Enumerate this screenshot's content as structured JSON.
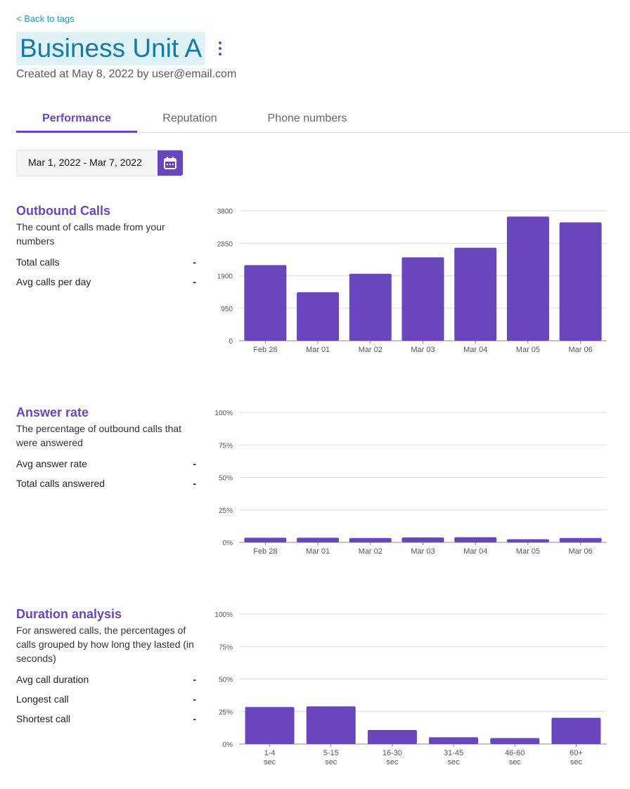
{
  "nav": {
    "back_label": "< Back to tags"
  },
  "header": {
    "title": "Business Unit A",
    "subtitle": "Created at May 8, 2022 by user@email.com"
  },
  "tabs": [
    {
      "label": "Performance",
      "active": true
    },
    {
      "label": "Reputation",
      "active": false
    },
    {
      "label": "Phone numbers",
      "active": false
    }
  ],
  "date_range": {
    "value": "Mar 1, 2022 - Mar 7, 2022"
  },
  "colors": {
    "accent": "#6a46bd",
    "title_bg": "#dff2f8",
    "title_text": "#137ba6",
    "link": "#1a9bc4"
  },
  "sections": {
    "outbound": {
      "title": "Outbound Calls",
      "description": "The count of calls made from your numbers",
      "stats": [
        {
          "label": "Total calls",
          "value": "-"
        },
        {
          "label": "Avg calls per day",
          "value": "-"
        }
      ]
    },
    "answer": {
      "title": "Answer rate",
      "description": "The percentage of outbound calls that were answered",
      "stats": [
        {
          "label": "Avg answer rate",
          "value": "-"
        },
        {
          "label": "Total calls answered",
          "value": "-"
        }
      ]
    },
    "duration": {
      "title": "Duration analysis",
      "description": "For answered calls, the percentages of calls grouped by how long they lasted (in seconds)",
      "stats": [
        {
          "label": "Avg call duration",
          "value": "-"
        },
        {
          "label": "Longest call",
          "value": "-"
        },
        {
          "label": "Shortest call",
          "value": "-"
        }
      ]
    }
  },
  "chart_data": [
    {
      "type": "bar",
      "title": "Outbound Calls",
      "categories": [
        "Feb 28",
        "Mar 01",
        "Mar 02",
        "Mar 03",
        "Mar 04",
        "Mar 05",
        "Mar 06"
      ],
      "values": [
        2210,
        1420,
        1960,
        2440,
        2720,
        3630,
        3460
      ],
      "yticks": [
        "0",
        "950",
        "1900",
        "2850",
        "3800"
      ],
      "ylim": [
        0,
        3800
      ]
    },
    {
      "type": "bar",
      "title": "Answer rate",
      "categories": [
        "Feb 28",
        "Mar 01",
        "Mar 02",
        "Mar 03",
        "Mar 04",
        "Mar 05",
        "Mar 06"
      ],
      "values": [
        3.6,
        3.6,
        3.4,
        3.8,
        4.0,
        2.4,
        3.4
      ],
      "yticks": [
        "0%",
        "25%",
        "50%",
        "75%",
        "100%"
      ],
      "ylim": [
        0,
        100
      ]
    },
    {
      "type": "bar",
      "title": "Duration analysis",
      "categories": [
        [
          "1-4",
          "sec"
        ],
        [
          "5-15",
          "sec"
        ],
        [
          "16-30",
          "sec"
        ],
        [
          "31-45",
          "sec"
        ],
        [
          "46-60",
          "sec"
        ],
        [
          "60+",
          "sec"
        ]
      ],
      "values": [
        28.5,
        29,
        10.8,
        5.2,
        4.6,
        20.2
      ],
      "yticks": [
        "0%",
        "25%",
        "50%",
        "75%",
        "100%"
      ],
      "ylim": [
        0,
        100
      ]
    }
  ]
}
